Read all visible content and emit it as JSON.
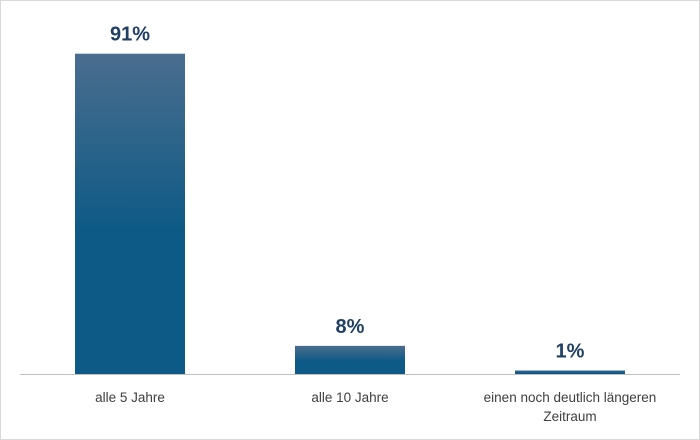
{
  "chart_data": {
    "type": "bar",
    "title": "",
    "xlabel": "",
    "ylabel": "",
    "ylim": [
      0,
      100
    ],
    "grid": false,
    "legend": "none",
    "categories": [
      [
        "alle 5 Jahre"
      ],
      [
        "alle 10 Jahre"
      ],
      [
        "einen noch deutlich längeren",
        "Zeitraum"
      ]
    ],
    "values": [
      91,
      8,
      1
    ],
    "data_labels": [
      "91%",
      "8%",
      "1%"
    ]
  },
  "colors": {
    "bar_top": "#4a6d8e",
    "bar_bottom": "#0e5a86",
    "label_text": "#1f3f63",
    "category_text": "#404040",
    "axis_line": "#bfbfbf",
    "frame_border": "#d9d9d9"
  }
}
